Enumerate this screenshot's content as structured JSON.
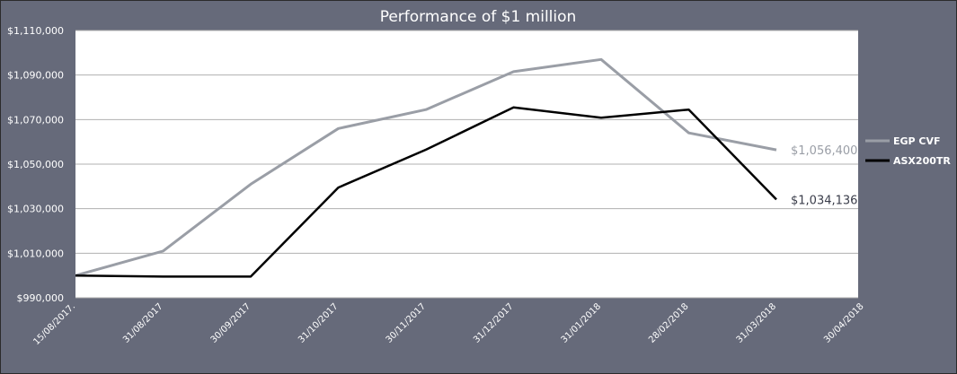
{
  "chart_data": {
    "type": "line",
    "title": "Performance of $1 million",
    "xlabel": "",
    "ylabel": "",
    "ylim": [
      990000,
      1110000
    ],
    "grid": true,
    "legend_position": "right",
    "y_ticks": [
      {
        "value": 990000,
        "label": "$990,000"
      },
      {
        "value": 1010000,
        "label": "$1,010,000"
      },
      {
        "value": 1030000,
        "label": "$1,030,000"
      },
      {
        "value": 1050000,
        "label": "$1,050,000"
      },
      {
        "value": 1070000,
        "label": "$1,070,000"
      },
      {
        "value": 1090000,
        "label": "$1,090,000"
      },
      {
        "value": 1110000,
        "label": "$1,110,000"
      }
    ],
    "categories": [
      "15/08/2017.",
      "31/08/2017",
      "30/09/2017",
      "31/10/2017",
      "30/11/2017",
      "31/12/2017",
      "31/01/2018",
      "28/02/2018",
      "31/03/2018",
      "30/04/2018"
    ],
    "series": [
      {
        "name": "EGP CVF",
        "color": "#9a9ea6",
        "values": [
          1000000,
          1011000,
          1041000,
          1066000,
          1074500,
          1091500,
          1097000,
          1064000,
          1056400,
          null
        ],
        "end_label": "$1,056,400"
      },
      {
        "name": "ASX200TR",
        "color": "#000000",
        "values": [
          1000000,
          999500,
          999500,
          1039500,
          1056500,
          1075500,
          1070800,
          1074500,
          1034136,
          null
        ],
        "end_label": "$1,034,136"
      }
    ]
  },
  "colors": {
    "frame_background": "#666a7a",
    "plot_background": "#ffffff",
    "gridline": "#b0b0b0",
    "end_label_egp": "#9a9ea6",
    "end_label_asx": "#3a3d4a"
  }
}
